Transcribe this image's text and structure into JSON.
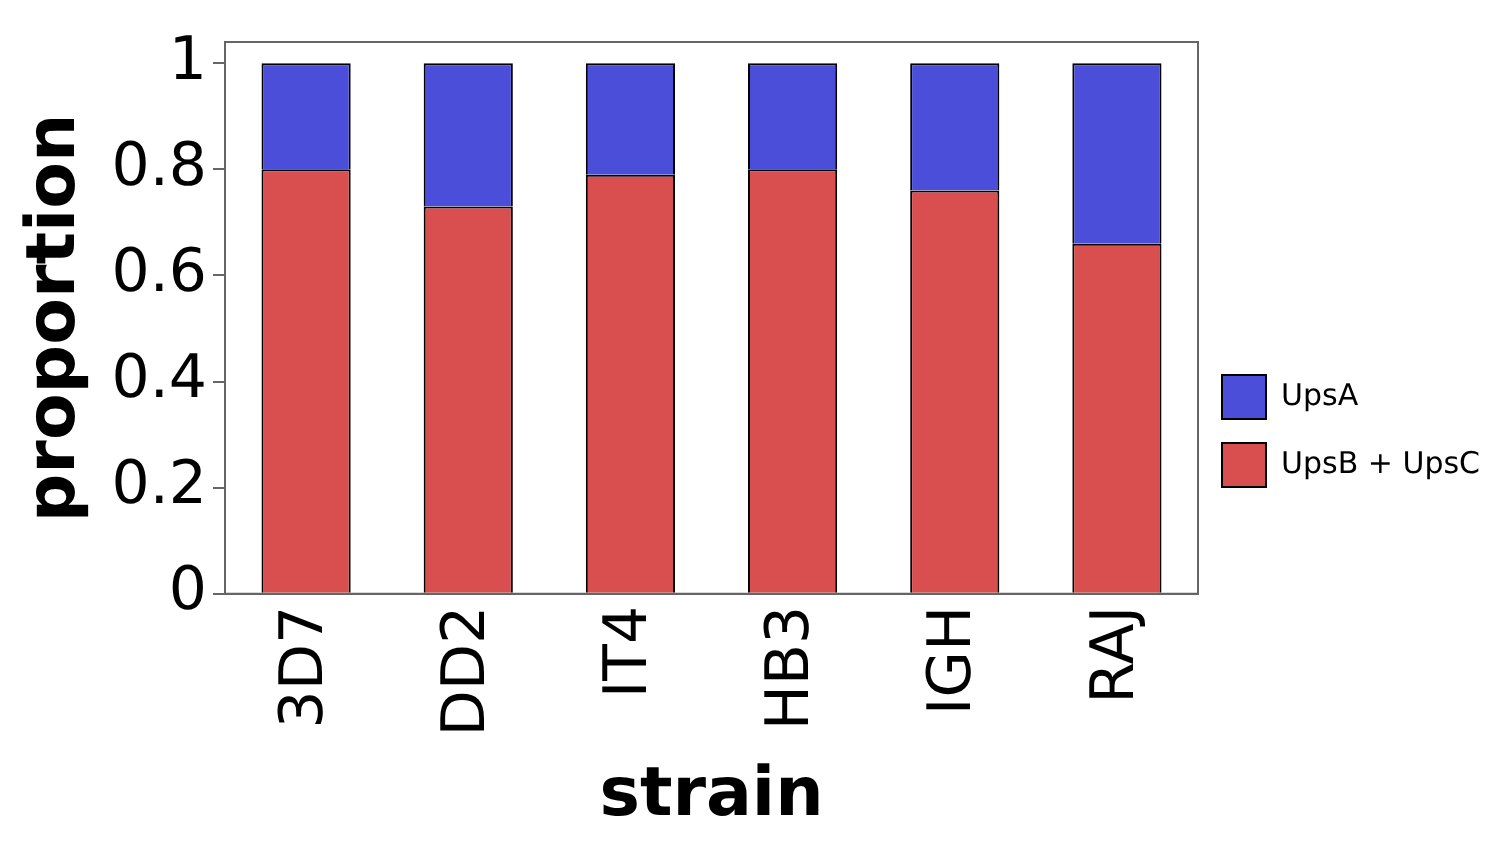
{
  "chart_data": {
    "type": "bar",
    "stacked": true,
    "xlabel": "strain",
    "ylabel": "proportion",
    "categories": [
      "3D7",
      "DD2",
      "IT4",
      "HB3",
      "IGH",
      "RAJ"
    ],
    "series": [
      {
        "name": "UpsB + UpsC",
        "color": "#d94f4f",
        "values": [
          0.8,
          0.73,
          0.79,
          0.8,
          0.76,
          0.66
        ]
      },
      {
        "name": "UpsA",
        "color": "#4b4ed9",
        "values": [
          0.2,
          0.27,
          0.21,
          0.2,
          0.24,
          0.34
        ]
      }
    ],
    "ylim": [
      0,
      1.04
    ],
    "yticks": [
      0,
      0.2,
      0.4,
      0.6,
      0.8,
      1
    ],
    "grid": false,
    "legend": "right"
  }
}
